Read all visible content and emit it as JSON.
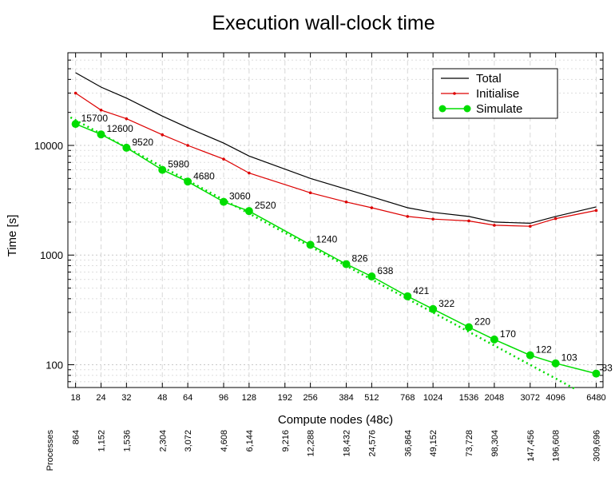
{
  "chart_data": {
    "type": "line",
    "title": "Execution wall-clock time",
    "xlabel": "Compute nodes (48c)",
    "ylabel": "Time [s]",
    "xscale": "log",
    "yscale": "log",
    "xlim": [
      16.5,
      7000
    ],
    "ylim": [
      62,
      70000
    ],
    "y_ticks": [
      100,
      1000,
      10000
    ],
    "x_ticks": [
      18,
      24,
      32,
      48,
      64,
      96,
      128,
      192,
      256,
      384,
      512,
      768,
      1024,
      1536,
      2048,
      3072,
      4096,
      6480
    ],
    "processes_label": "Processes",
    "processes": [
      "864",
      "1,152",
      "1,536",
      "2,304",
      "3,072",
      "4,608",
      "6,144",
      "9,216",
      "12,288",
      "18,432",
      "24,576",
      "36,864",
      "49,152",
      "73,728",
      "98,304",
      "147,456",
      "196,608",
      "309,696"
    ],
    "legend_position": "top-right",
    "grid": true,
    "series": [
      {
        "name": "Total",
        "color": "#000000",
        "x": [
          18,
          24,
          32,
          48,
          64,
          96,
          128,
          256,
          512,
          768,
          1024,
          1536,
          2048,
          3072,
          4096,
          6480
        ],
        "values": [
          46000,
          34000,
          27000,
          18500,
          14500,
          10500,
          8000,
          5000,
          3400,
          2700,
          2450,
          2250,
          2000,
          1950,
          2250,
          2750
        ]
      },
      {
        "name": "Initialise",
        "color": "#dd0000",
        "x": [
          18,
          24,
          32,
          48,
          64,
          96,
          128,
          256,
          384,
          512,
          768,
          1024,
          1536,
          2048,
          3072,
          4096,
          6480
        ],
        "values": [
          30000,
          21000,
          17500,
          12500,
          10000,
          7500,
          5600,
          3700,
          3050,
          2700,
          2250,
          2130,
          2050,
          1870,
          1830,
          2150,
          2550
        ]
      },
      {
        "name": "Simulate",
        "color": "#00dd00",
        "x": [
          18,
          24,
          32,
          48,
          64,
          96,
          128,
          256,
          384,
          512,
          768,
          1024,
          1536,
          2048,
          3072,
          4096,
          6480
        ],
        "values": [
          15700,
          12600,
          9520,
          5980,
          4680,
          3060,
          2520,
          1240,
          826,
          638,
          421,
          322,
          220,
          170,
          122,
          103,
          83
        ],
        "labels": [
          "15700",
          "12600",
          "9520",
          "5980",
          "4680",
          "3060",
          "2520",
          "1240",
          "826",
          "638",
          "421",
          "322",
          "220",
          "170",
          "122",
          "103",
          "83"
        ]
      }
    ],
    "ideal_scaling": {
      "color": "#00dd00",
      "x": [
        17,
        5200
      ],
      "values": [
        18000,
        59
      ]
    }
  }
}
